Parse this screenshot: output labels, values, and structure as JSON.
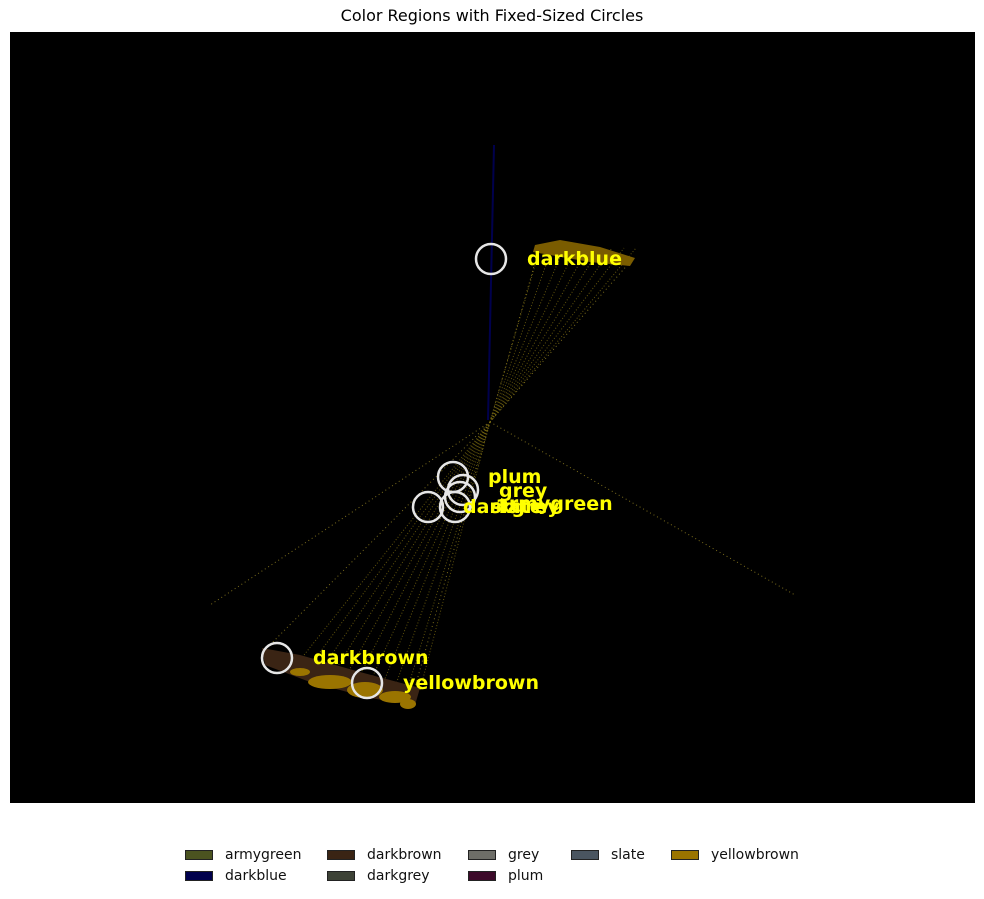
{
  "chart_data": {
    "type": "scatter",
    "title": "Color Regions with Fixed-Sized Circles",
    "xlabel": "",
    "ylabel": "",
    "background": "#000000",
    "annotation_color": "#ffff00",
    "circle_color": "#e6e6e6",
    "regions": [
      {
        "name": "darkblue",
        "color": "#00004d"
      },
      {
        "name": "plum",
        "color": "#3d0a2a"
      },
      {
        "name": "grey",
        "color": "#6e6e68"
      },
      {
        "name": "armygreen",
        "color": "#4b5320"
      },
      {
        "name": "slate",
        "color": "#4a5560"
      },
      {
        "name": "darkgrey",
        "color": "#3d4236"
      },
      {
        "name": "darkbrown",
        "color": "#3a2414"
      },
      {
        "name": "yellowbrown",
        "color": "#9a7400"
      }
    ],
    "legend": {
      "placement": "bottom-center",
      "columns": [
        [
          "armygreen",
          "darkblue"
        ],
        [
          "darkbrown",
          "darkgrey"
        ],
        [
          "grey",
          "plum"
        ],
        [
          "slate"
        ],
        [
          "yellowbrown"
        ]
      ]
    }
  }
}
